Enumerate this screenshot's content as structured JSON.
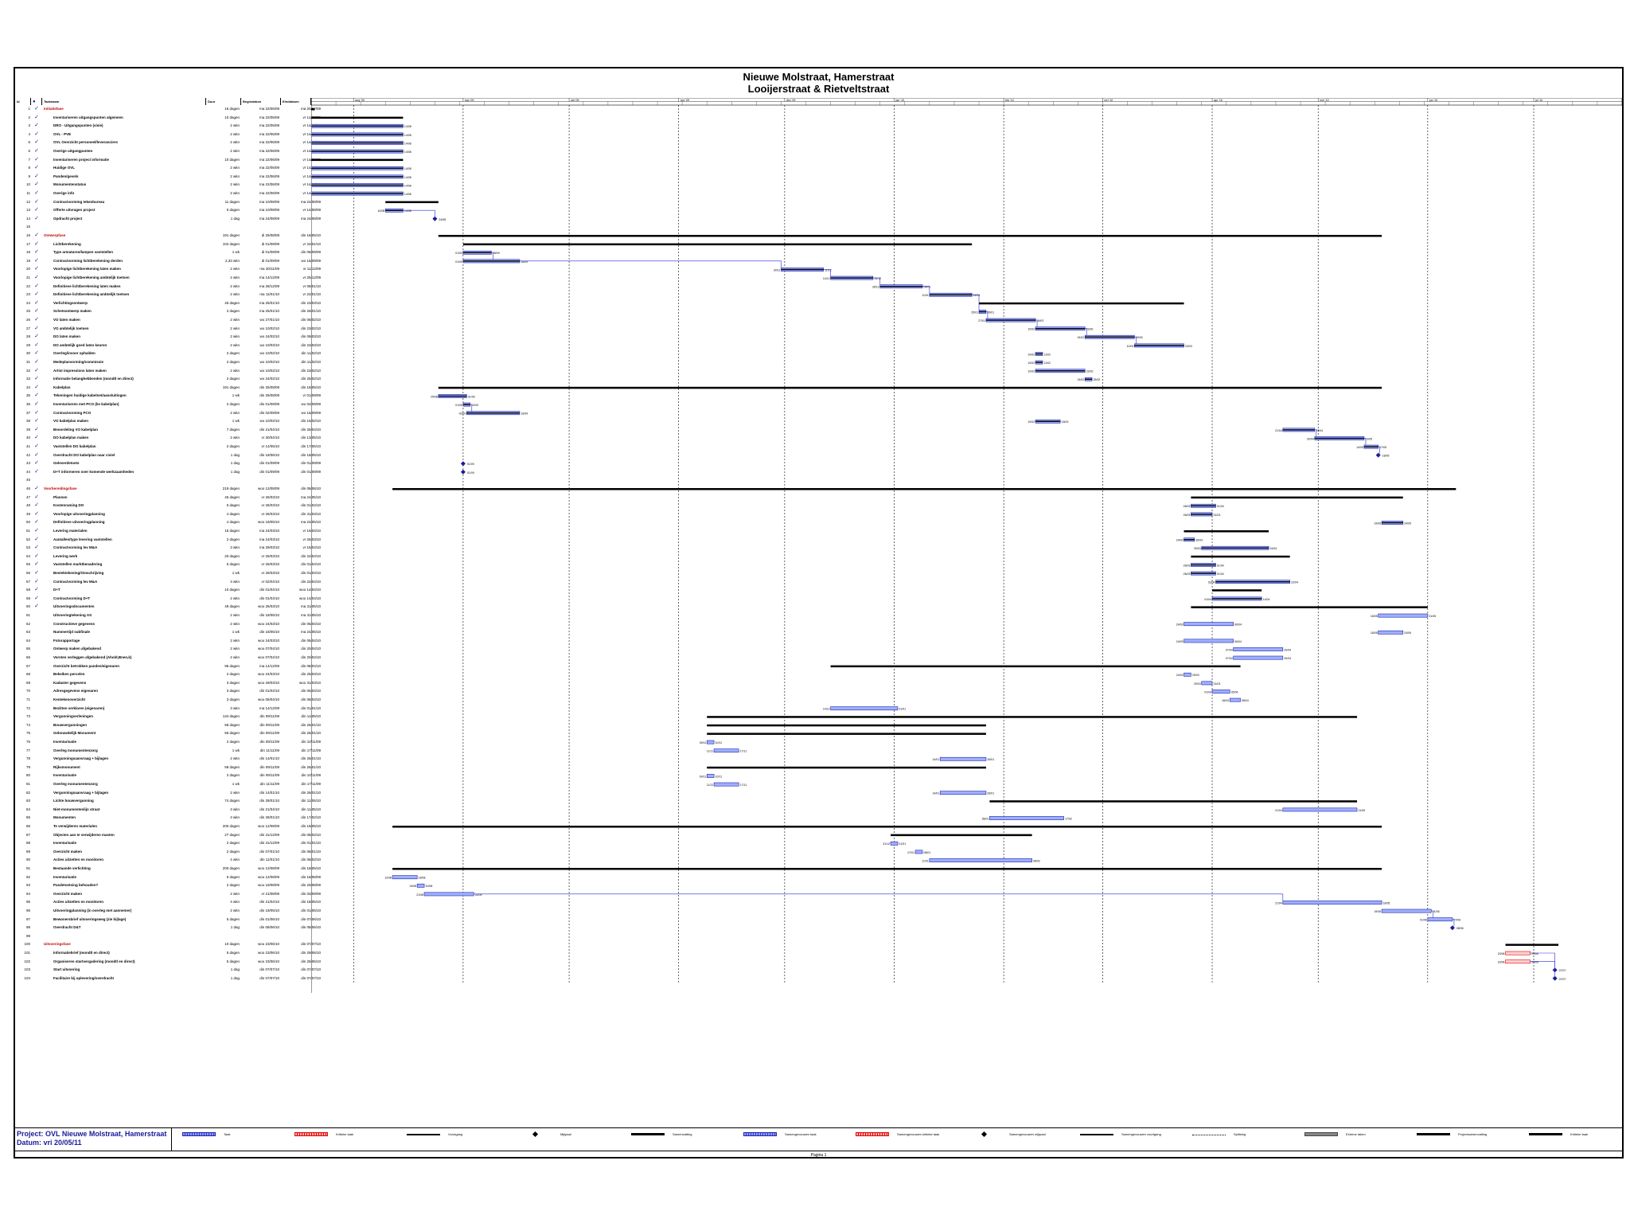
{
  "title_line1": "Nieuwe Molstraat, Hamerstraat",
  "title_line2": "Looijerstraat & Rietveltstraat",
  "columns": {
    "id": "Id",
    "name": "Taaknaam",
    "duration": "Duur",
    "start": "Begindatum",
    "finish": "Einddatum"
  },
  "rows": [
    {
      "id": "1",
      "name": "Initiatiefase",
      "dur": "16 dagen",
      "beg": "ma 22/06/09",
      "end": "ma 20/07/09",
      "summary": true
    },
    {
      "id": "2",
      "name": "Inventariseren uitgangspunten algemeen",
      "dur": "10 dagen",
      "beg": "ma 22/06/09",
      "end": "vr 14/08/09"
    },
    {
      "id": "3",
      "name": "DRO - Uitgangspunten (visie)",
      "dur": "2 wkn",
      "beg": "ma 22/06/09",
      "end": "vr 14/08/09"
    },
    {
      "id": "4",
      "name": "OVL - PVE",
      "dur": "2 wkn",
      "beg": "ma 22/06/09",
      "end": "vr 14/08/09"
    },
    {
      "id": "5",
      "name": "OVL Overzicht personeel/leveranciers",
      "dur": "2 wkn",
      "beg": "ma 22/06/09",
      "end": "vr 14/08/09"
    },
    {
      "id": "6",
      "name": "Overige uitgangpunten",
      "dur": "2 wkn",
      "beg": "ma 22/06/09",
      "end": "vr 14/08/09"
    },
    {
      "id": "7",
      "name": "Inventariseren project informatie",
      "dur": "10 dagen",
      "beg": "ma 22/06/09",
      "end": "vr 14/08/09"
    },
    {
      "id": "8",
      "name": "Huidige OVL",
      "dur": "2 wkn",
      "beg": "ma 22/06/09",
      "end": "vr 14/08/09"
    },
    {
      "id": "9",
      "name": "Panden/gevels",
      "dur": "2 wkn",
      "beg": "ma 22/06/09",
      "end": "vr 14/08/09"
    },
    {
      "id": "10",
      "name": "Monumentenstatus",
      "dur": "2 wkn",
      "beg": "ma 22/06/09",
      "end": "vr 14/08/09"
    },
    {
      "id": "11",
      "name": "Overige info",
      "dur": "2 wkn",
      "beg": "ma 22/06/09",
      "end": "vr 14/08/09"
    },
    {
      "id": "12",
      "name": "Contractvorming tekenbureau",
      "dur": "11 dagen",
      "beg": "ma 10/08/09",
      "end": "ma 24/08/09"
    },
    {
      "id": "13",
      "name": "Offerte uitvragen project",
      "dur": "5 dagen",
      "beg": "ma 10/08/09",
      "end": "vr 14/08/09"
    },
    {
      "id": "14",
      "name": "Opdracht project",
      "dur": "1 dag",
      "beg": "ma 24/08/09",
      "end": "ma 24/08/09"
    },
    {
      "id": "15",
      "name": "",
      "dur": "",
      "beg": "",
      "end": ""
    },
    {
      "id": "16",
      "name": "Ontwerpfase",
      "dur": "191 dagen",
      "beg": "di 25/08/09",
      "end": "din 18/05/10",
      "summary": true
    },
    {
      "id": "17",
      "name": "Lichtberekening",
      "dur": "102 dagen",
      "beg": "di 01/09/09",
      "end": "vr 22/01/10"
    },
    {
      "id": "18",
      "name": "Type armaturen/lampen vaststellen",
      "dur": "1 wk",
      "beg": "di 01/09/09",
      "end": "din 08/09/09"
    },
    {
      "id": "19",
      "name": "Contractvorming lichtberekening derden",
      "dur": "2,33 wkn",
      "beg": "di 01/09/09",
      "end": "wo 16/09/09"
    },
    {
      "id": "20",
      "name": "Voorlopige lichtberekening laten maken",
      "dur": "2 wkn",
      "beg": "ma 30/11/09",
      "end": "vr 11/12/09"
    },
    {
      "id": "21",
      "name": "Voorlopige lichtberekening ambtelijk toetsen",
      "dur": "2 wkn",
      "beg": "ma 14/12/09",
      "end": "vr 25/12/09"
    },
    {
      "id": "22",
      "name": "Definitieve lichtberekening laten maken",
      "dur": "2 wkn",
      "beg": "ma 28/12/09",
      "end": "vr 08/01/10"
    },
    {
      "id": "23",
      "name": "Definitieve lichtberekening ambtelijk toetsen",
      "dur": "2 wkn",
      "beg": "ma 11/01/10",
      "end": "vr 22/01/10"
    },
    {
      "id": "24",
      "name": "Verlichtingsontwerp",
      "dur": "45 dagen",
      "beg": "ma 25/01/10",
      "end": "din 23/03/10"
    },
    {
      "id": "25",
      "name": "Schetsontwerp maken",
      "dur": "2 dagen",
      "beg": "ma 25/01/10",
      "end": "din 26/01/10"
    },
    {
      "id": "26",
      "name": "VO laten maken",
      "dur": "2 wkn",
      "beg": "wo 27/01/10",
      "end": "din 09/02/10"
    },
    {
      "id": "27",
      "name": "VO ambtelijk toetsen",
      "dur": "2 wkn",
      "beg": "wo 10/02/10",
      "end": "din 23/02/10"
    },
    {
      "id": "28",
      "name": "DO laten maken",
      "dur": "2 wkn",
      "beg": "wo 24/02/10",
      "end": "din 09/03/10"
    },
    {
      "id": "29",
      "name": "DO ambtelijk goed laten keuren",
      "dur": "2 wkn",
      "beg": "wo 10/03/10",
      "end": "din 23/03/10"
    },
    {
      "id": "30",
      "name": "Overleg/invoer ophalden",
      "dur": "2 dagen",
      "beg": "wo 10/02/10",
      "end": "din 11/02/10"
    },
    {
      "id": "31",
      "name": "Medeplanvorming/commissie",
      "dur": "2 dagen",
      "beg": "wo 10/02/10",
      "end": "din 11/02/10"
    },
    {
      "id": "32",
      "name": "Artist impressions laten maken",
      "dur": "2 wkn",
      "beg": "wo 10/02/10",
      "end": "din 23/02/10"
    },
    {
      "id": "33",
      "name": "Informatie belanghebbenden (mondtl en direct)",
      "dur": "2 dagen",
      "beg": "wo 24/02/10",
      "end": "din 25/02/10"
    },
    {
      "id": "34",
      "name": "Kabelplan",
      "dur": "191 dagen",
      "beg": "din 25/08/09",
      "end": "din 18/05/10"
    },
    {
      "id": "35",
      "name": "Tekeningen huidige kabelnet/aansluitingen",
      "dur": "1 wk",
      "beg": "din 25/08/09",
      "end": "vr 01/09/09"
    },
    {
      "id": "36",
      "name": "Inventariseren met PCO (bv kabelplan)",
      "dur": "2 dagen",
      "beg": "din 01/09/09",
      "end": "wo 02/09/09"
    },
    {
      "id": "37",
      "name": "Contractvorming PCO",
      "dur": "2 wkn",
      "beg": "din 02/09/09",
      "end": "wo 16/09/09"
    },
    {
      "id": "38",
      "name": "VO kabelplan maken",
      "dur": "1 wk",
      "beg": "wo 10/02/10",
      "end": "din 16/02/10"
    },
    {
      "id": "39",
      "name": "Beoordeling VO kabelplan",
      "dur": "7 dagen",
      "beg": "din 21/04/10",
      "end": "din 29/04/10"
    },
    {
      "id": "40",
      "name": "DO kabelplan maken",
      "dur": "2 wkn",
      "beg": "vr 30/04/10",
      "end": "din 13/05/10"
    },
    {
      "id": "41",
      "name": "Vaststellen DO kabelplan",
      "dur": "2 dagen",
      "beg": "vr 14/05/10",
      "end": "din 17/05/10"
    },
    {
      "id": "42",
      "name": "Overdracht DO kabelplan naar civiel",
      "dur": "1 dag",
      "beg": "din 18/05/10",
      "end": "din 18/05/10"
    },
    {
      "id": "43",
      "name": "Geleverdetoets",
      "dur": "1 dag",
      "beg": "din 01/09/09",
      "end": "din 01/09/09"
    },
    {
      "id": "44",
      "name": "D+T informeren over komende werkzaamheden",
      "dur": "1 dag",
      "beg": "din 01/09/09",
      "end": "din 01/09/09"
    },
    {
      "id": "45",
      "name": "",
      "dur": "",
      "beg": "",
      "end": ""
    },
    {
      "id": "46",
      "name": "Voorbereidingsfase",
      "dur": "219 dagen",
      "beg": "woo 12/08/09",
      "end": "din 08/06/10",
      "summary": true
    },
    {
      "id": "47",
      "name": "Plannen",
      "dur": "45 dagen",
      "beg": "vr 26/03/10",
      "end": "ma 24/05/10"
    },
    {
      "id": "48",
      "name": "Kostenraming DO",
      "dur": "5 dagen",
      "beg": "vr 26/03/10",
      "end": "din 01/04/10"
    },
    {
      "id": "49",
      "name": "Voorlopige uitvoeringplanning",
      "dur": "4 dagen",
      "beg": "vr 26/03/10",
      "end": "din 31/03/10"
    },
    {
      "id": "50",
      "name": "Definitieve uitvoeringplanning",
      "dur": "4 dagen",
      "beg": "woo 19/05/10",
      "end": "ma 24/05/10"
    },
    {
      "id": "51",
      "name": "Levering materialen",
      "dur": "15 dagen",
      "beg": "ma 24/03/10",
      "end": "vr 16/04/10"
    },
    {
      "id": "52",
      "name": "Aantallen/type levering vaststellen",
      "dur": "2 dagen",
      "beg": "ma 24/03/10",
      "end": "vr 26/03/10"
    },
    {
      "id": "53",
      "name": "Contractvorming lev M&A",
      "dur": "3 wkn",
      "beg": "ma 29/03/10",
      "end": "vr 16/04/10"
    },
    {
      "id": "54",
      "name": "Levering werk",
      "dur": "20 dagen",
      "beg": "vr 26/03/10",
      "end": "din 22/04/10"
    },
    {
      "id": "55",
      "name": "Vaststellen marktbenadering",
      "dur": "5 dagen",
      "beg": "vr 26/03/10",
      "end": "din 01/04/10"
    },
    {
      "id": "56",
      "name": "Bestektekening/Omschrijving",
      "dur": "1 wk",
      "beg": "vr 26/03/10",
      "end": "din 01/04/10"
    },
    {
      "id": "57",
      "name": "Contractvorming lev M&A",
      "dur": "3 wkn",
      "beg": "vr 02/04/10",
      "end": "din 22/04/10"
    },
    {
      "id": "58",
      "name": "D+T",
      "dur": "10 dagen",
      "beg": "din 01/04/10",
      "end": "woo 14/04/10"
    },
    {
      "id": "59",
      "name": "Contractvorming D+T",
      "dur": "2 wkn",
      "beg": "din 01/04/10",
      "end": "woo 14/04/10"
    },
    {
      "id": "60",
      "name": "Uitvoeringsdocumenten",
      "dur": "49 dagen",
      "beg": "woo 26/03/10",
      "end": "ma 31/05/10"
    },
    {
      "id": "61",
      "name": "Uitvoeringtekening AS",
      "dur": "2 wkn",
      "beg": "din 18/05/10",
      "end": "ma 31/05/10"
    },
    {
      "id": "62",
      "name": "Constructieve gegevens",
      "dur": "2 wkn",
      "beg": "woo 24/03/10",
      "end": "din 06/04/10"
    },
    {
      "id": "63",
      "name": "Nummertijd subfinale",
      "dur": "1 wk",
      "beg": "din 18/05/10",
      "end": "ma 24/05/10"
    },
    {
      "id": "64",
      "name": "Fotorapportage",
      "dur": "2 wkn",
      "beg": "woo 24/03/10",
      "end": "din 06/04/10"
    },
    {
      "id": "65",
      "name": "Ontwerp maken afgebakend",
      "dur": "2 wkn",
      "beg": "woo 07/04/10",
      "end": "din 20/04/10"
    },
    {
      "id": "66",
      "name": "Vorsten verleggen afgebakend (Ahold,Bnen,k)",
      "dur": "2 wkn",
      "beg": "woo 07/04/10",
      "end": "din 20/04/10"
    },
    {
      "id": "67",
      "name": "Overzicht betrokken panden/eigenaren",
      "dur": "96 dagen",
      "beg": "ma 14/12/09",
      "end": "din 08/04/10"
    },
    {
      "id": "68",
      "name": "Bekeiken percelen",
      "dur": "2 dagen",
      "beg": "woo 24/03/10",
      "end": "din 25/03/10"
    },
    {
      "id": "69",
      "name": "Kadaster gegevens",
      "dur": "3 dagen",
      "beg": "woo 29/03/10",
      "end": "woo 31/03/10"
    },
    {
      "id": "70",
      "name": "Adresgegevens eigenaren",
      "dur": "3 dagen",
      "beg": "din 01/04/10",
      "end": "din 05/04/10"
    },
    {
      "id": "71",
      "name": "Kentekenoverzicht",
      "dur": "3 dagen",
      "beg": "woo 06/04/10",
      "end": "din 08/04/10"
    },
    {
      "id": "72",
      "name": "Bezitten verklaren (eigenaren)",
      "dur": "3 wkn",
      "beg": "ma 14/12/09",
      "end": "din 01/01/10"
    },
    {
      "id": "73",
      "name": "Vergunningverleningen",
      "dur": "134 dagen",
      "beg": "din 09/11/09",
      "end": "din 11/05/10"
    },
    {
      "id": "74",
      "name": "Bouwvergunningen",
      "dur": "58 dagen",
      "beg": "din 09/11/09",
      "end": "din 26/01/10"
    },
    {
      "id": "75",
      "name": "Gebouwdelijk Monument",
      "dur": "56 dagen",
      "beg": "din 09/11/09",
      "end": "din 26/01/10"
    },
    {
      "id": "76",
      "name": "Inventarisatie",
      "dur": "2 dagen",
      "beg": "din 09/11/09",
      "end": "din 10/11/09"
    },
    {
      "id": "77",
      "name": "Overleg monumentenzorg",
      "dur": "1 wk",
      "beg": "din 11/11/09",
      "end": "din 17/11/09"
    },
    {
      "id": "78",
      "name": "Vergunningsaanvraag + bijlagen",
      "dur": "2 wkn",
      "beg": "din 14/01/10",
      "end": "din 26/01/10"
    },
    {
      "id": "79",
      "name": "Rijksmonument",
      "dur": "58 dagen",
      "beg": "din 09/11/09",
      "end": "din 26/01/10"
    },
    {
      "id": "80",
      "name": "Inventarisatie",
      "dur": "2 dagen",
      "beg": "din 09/11/09",
      "end": "din 10/11/09"
    },
    {
      "id": "81",
      "name": "Overleg monumentenzorg",
      "dur": "1 wk",
      "beg": "din 11/11/09",
      "end": "din 17/11/09"
    },
    {
      "id": "82",
      "name": "Vergunningsaanvraag + bijlagen",
      "dur": "2 wkn",
      "beg": "din 14/01/10",
      "end": "din 26/01/10"
    },
    {
      "id": "83",
      "name": "Lichte bouwvergunning",
      "dur": "74 dagen",
      "beg": "din 28/01/10",
      "end": "din 11/05/10"
    },
    {
      "id": "84",
      "name": "Niet-monumentenlijn straat",
      "dur": "3 wkn",
      "beg": "din 21/04/10",
      "end": "din 11/05/10"
    },
    {
      "id": "85",
      "name": "Monumenten",
      "dur": "3 wkn",
      "beg": "din 28/01/10",
      "end": "din 17/02/10"
    },
    {
      "id": "86",
      "name": "Te verwijderen materialen",
      "dur": "200 dagen",
      "beg": "woo 12/08/09",
      "end": "din 18/05/10"
    },
    {
      "id": "87",
      "name": "Objecten aan te verwijderen masten",
      "dur": "27 dagen",
      "beg": "din 31/12/09",
      "end": "din 08/02/10"
    },
    {
      "id": "88",
      "name": "Inventarisatie",
      "dur": "2 dagen",
      "beg": "din 31/12/09",
      "end": "din 01/01/10"
    },
    {
      "id": "89",
      "name": "Overzicht maken",
      "dur": "2 dagen",
      "beg": "din 07/01/10",
      "end": "din 08/01/10"
    },
    {
      "id": "90",
      "name": "Acties uitzetten en monitoren",
      "dur": "4 wkn",
      "beg": "din 11/01/10",
      "end": "din 08/02/10"
    },
    {
      "id": "91",
      "name": "Bestaande verlichting",
      "dur": "200 dagen",
      "beg": "woo 12/08/09",
      "end": "din 18/05/10"
    },
    {
      "id": "92",
      "name": "Inventarisatie",
      "dur": "5 dagen",
      "beg": "woo 12/08/09",
      "end": "din 18/08/09"
    },
    {
      "id": "93",
      "name": "Pasdetoetsing behouden?",
      "dur": "2 dagen",
      "beg": "woo 19/08/09",
      "end": "din 20/08/09"
    },
    {
      "id": "94",
      "name": "Overzicht maken",
      "dur": "2 wkn",
      "beg": "vr 21/08/09",
      "end": "din 03/09/09"
    },
    {
      "id": "95",
      "name": "Acties uitzetten en monitoren",
      "dur": "4 wkn",
      "beg": "din 21/04/10",
      "end": "din 18/05/10"
    },
    {
      "id": "96",
      "name": "Uitvoeringplanning (in overleg met aannemer)",
      "dur": "2 wkn",
      "beg": "din 19/05/10",
      "end": "din 01/06/10"
    },
    {
      "id": "97",
      "name": "Bewonersbrief uitvoeringsweg (zie bijlage)",
      "dur": "5 dagen",
      "beg": "din 01/06/10",
      "end": "din 07/06/10"
    },
    {
      "id": "98",
      "name": "Overdracht D&T",
      "dur": "1 dag",
      "beg": "din 08/06/10",
      "end": "din 08/06/10"
    },
    {
      "id": "99",
      "name": "",
      "dur": "",
      "beg": "",
      "end": ""
    },
    {
      "id": "100",
      "name": "Uitvoeringsfase",
      "dur": "10 dagen",
      "beg": "woo 23/06/10",
      "end": "din 07/07/10",
      "summary": true
    },
    {
      "id": "101",
      "name": "Informatiebrief (mondtl en direct)",
      "dur": "5 dagen",
      "beg": "woo 23/06/10",
      "end": "din 29/06/10"
    },
    {
      "id": "102",
      "name": "Organiseren startvergadering (mondtl en direct)",
      "dur": "5 dagen",
      "beg": "woo 23/06/10",
      "end": "din 29/06/10"
    },
    {
      "id": "103",
      "name": "Start uitvoering",
      "dur": "1 dag",
      "beg": "din 07/07/10",
      "end": "din 07/07/10"
    },
    {
      "id": "104",
      "name": "Facilitaire bij oplevering/overdracht",
      "dur": "1 dag",
      "beg": "din 07/07/10",
      "end": "din 07/07/10"
    }
  ],
  "timescale_top": [
    "aug '09",
    "sep '09",
    "okt '09",
    "nov '09",
    "dec '09",
    "jan '10",
    "feb '10",
    "mrt '10",
    "apr '10",
    "mei '10",
    "jun '10",
    "jul '10"
  ],
  "footer_project": "Project: OVL Nieuwe Molstraat, Hamerstraat",
  "footer_date": "Datum: vri 20/05/11",
  "legend": [
    {
      "label": "Taak",
      "style": "task"
    },
    {
      "label": "Kritieke taak",
      "style": "critical"
    },
    {
      "label": "Voortgang",
      "style": "progress"
    },
    {
      "label": "Mijlpaal",
      "style": "milestone"
    },
    {
      "label": "Samenvatting",
      "style": "summary"
    },
    {
      "label": "Samengevouwen taak",
      "style": "task"
    },
    {
      "label": "Samengevouwen kritieke taak",
      "style": "critical"
    },
    {
      "label": "Samengevouwen mijlpaal",
      "style": "milestone"
    },
    {
      "label": "Samengevouwen voortgang",
      "style": "progress"
    },
    {
      "label": "Splitsing",
      "style": "split"
    },
    {
      "label": "Externe taken",
      "style": "external"
    },
    {
      "label": "Projectsamenvatting",
      "style": "summary"
    },
    {
      "label": "Kritieke taak",
      "style": "summary"
    }
  ],
  "page_label": "Pagina 1",
  "colors": {
    "task": "#3a3ad0",
    "critical": "#e00000",
    "summary": "#000000",
    "link": "#2a2ae0"
  }
}
